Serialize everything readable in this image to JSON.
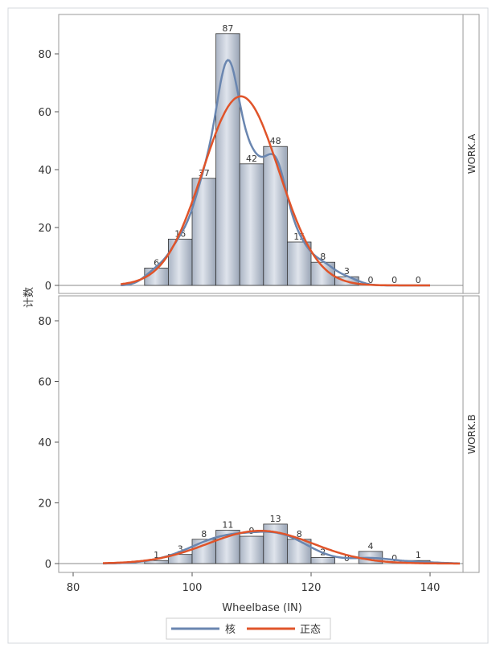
{
  "chart_data": {
    "type": "bar",
    "subtype": "histogram-panel",
    "xlabel": "Wheelbase (IN)",
    "ylabel": "计数",
    "xlim": [
      80,
      145
    ],
    "xticks": [
      80,
      100,
      120,
      140
    ],
    "ylim": [
      0,
      90
    ],
    "yticks": [
      0,
      20,
      40,
      60,
      80
    ],
    "bin_width": 4,
    "bin_starts": [
      92,
      96,
      100,
      104,
      108,
      112,
      116,
      120,
      124,
      128,
      132,
      136
    ],
    "grid": false,
    "legend_position": "bottom",
    "legend": [
      {
        "name": "核",
        "color": "#6a86b0"
      },
      {
        "name": "正态",
        "color": "#e0542a"
      }
    ],
    "bar_color": "#c4ccd8",
    "panels": [
      {
        "label": "WORK.A",
        "values": [
          6,
          16,
          37,
          87,
          42,
          48,
          15,
          8,
          3,
          0,
          0,
          0
        ]
      },
      {
        "label": "WORK.B",
        "values": [
          1,
          3,
          8,
          11,
          9,
          13,
          8,
          2,
          0,
          4,
          0,
          1
        ]
      }
    ]
  }
}
